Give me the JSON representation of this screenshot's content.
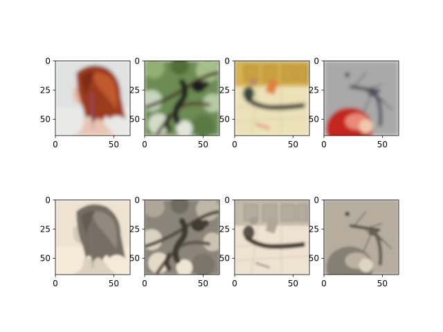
{
  "chart_data": [
    {
      "type": "image",
      "subject": "woman with red hair, side view",
      "palette": "color",
      "xlim": [
        0,
        64
      ],
      "ylim": [
        64,
        0
      ],
      "x_ticks": [
        {
          "value": 0,
          "label": "0"
        },
        {
          "value": 50,
          "label": "50"
        }
      ],
      "y_ticks": [
        {
          "value": 0,
          "label": "0"
        },
        {
          "value": 25,
          "label": "25"
        },
        {
          "value": 50,
          "label": "50"
        }
      ]
    },
    {
      "type": "image",
      "subject": "monkeys in a tree",
      "palette": "color",
      "xlim": [
        0,
        64
      ],
      "ylim": [
        64,
        0
      ],
      "x_ticks": [
        {
          "value": 0,
          "label": "0"
        },
        {
          "value": 50,
          "label": "50"
        }
      ],
      "y_ticks": [
        {
          "value": 0,
          "label": "0"
        },
        {
          "value": 25,
          "label": "25"
        },
        {
          "value": 50,
          "label": "50"
        }
      ]
    },
    {
      "type": "image",
      "subject": "man sitting on a kitchen floor",
      "palette": "color",
      "xlim": [
        0,
        64
      ],
      "ylim": [
        64,
        0
      ],
      "x_ticks": [
        {
          "value": 0,
          "label": "0"
        },
        {
          "value": 50,
          "label": "50"
        }
      ],
      "y_ticks": [
        {
          "value": 0,
          "label": "0"
        },
        {
          "value": 25,
          "label": "25"
        },
        {
          "value": 50,
          "label": "50"
        }
      ]
    },
    {
      "type": "image",
      "subject": "mosquito on an apple",
      "palette": "color",
      "xlim": [
        0,
        64
      ],
      "ylim": [
        64,
        0
      ],
      "x_ticks": [
        {
          "value": 0,
          "label": "0"
        },
        {
          "value": 50,
          "label": "50"
        }
      ],
      "y_ticks": [
        {
          "value": 0,
          "label": "0"
        },
        {
          "value": 25,
          "label": "25"
        },
        {
          "value": 50,
          "label": "50"
        }
      ]
    },
    {
      "type": "image",
      "subject": "woman with red hair, side view",
      "palette": "sepia",
      "xlim": [
        0,
        64
      ],
      "ylim": [
        64,
        0
      ],
      "x_ticks": [
        {
          "value": 0,
          "label": "0"
        },
        {
          "value": 50,
          "label": "50"
        }
      ],
      "y_ticks": [
        {
          "value": 0,
          "label": "0"
        },
        {
          "value": 25,
          "label": "25"
        },
        {
          "value": 50,
          "label": "50"
        }
      ]
    },
    {
      "type": "image",
      "subject": "monkeys in a tree",
      "palette": "sepia",
      "xlim": [
        0,
        64
      ],
      "ylim": [
        64,
        0
      ],
      "x_ticks": [
        {
          "value": 0,
          "label": "0"
        },
        {
          "value": 50,
          "label": "50"
        }
      ],
      "y_ticks": [
        {
          "value": 0,
          "label": "0"
        },
        {
          "value": 25,
          "label": "25"
        },
        {
          "value": 50,
          "label": "50"
        }
      ]
    },
    {
      "type": "image",
      "subject": "man sitting on a kitchen floor",
      "palette": "sepia",
      "xlim": [
        0,
        64
      ],
      "ylim": [
        64,
        0
      ],
      "x_ticks": [
        {
          "value": 0,
          "label": "0"
        },
        {
          "value": 50,
          "label": "50"
        }
      ],
      "y_ticks": [
        {
          "value": 0,
          "label": "0"
        },
        {
          "value": 25,
          "label": "25"
        },
        {
          "value": 50,
          "label": "50"
        }
      ]
    },
    {
      "type": "image",
      "subject": "mosquito on an apple",
      "palette": "sepia",
      "xlim": [
        0,
        64
      ],
      "ylim": [
        64,
        0
      ],
      "x_ticks": [
        {
          "value": 0,
          "label": "0"
        },
        {
          "value": 50,
          "label": "50"
        }
      ],
      "y_ticks": [
        {
          "value": 0,
          "label": "0"
        },
        {
          "value": 25,
          "label": "25"
        },
        {
          "value": 50,
          "label": "50"
        }
      ]
    }
  ]
}
